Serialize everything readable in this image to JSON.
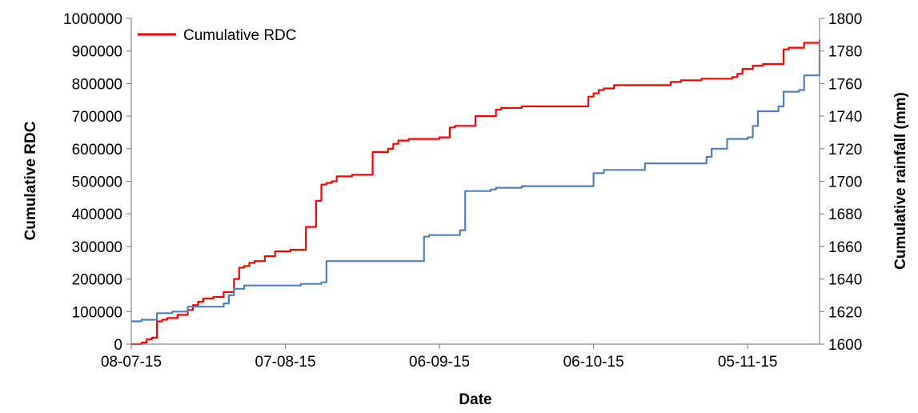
{
  "chart_data": {
    "type": "line",
    "xlabel": "Date",
    "ylabel_left": "Cumulative RDC",
    "ylabel_right": "Cumulative rainfall (mm)",
    "x_tick_labels": [
      "08-07-15",
      "07-08-15",
      "06-09-15",
      "06-10-15",
      "05-11-15"
    ],
    "x_tick_dates": [
      "2015-07-08",
      "2015-08-07",
      "2015-09-06",
      "2015-10-06",
      "2015-11-05"
    ],
    "xlim": [
      "2015-07-08",
      "2015-11-19"
    ],
    "ylim_left": [
      0,
      1000000
    ],
    "ylim_right": [
      1600,
      1800
    ],
    "y_left_ticks": [
      "0",
      "100000",
      "200000",
      "300000",
      "400000",
      "500000",
      "600000",
      "700000",
      "800000",
      "900000",
      "1000000"
    ],
    "y_right_ticks": [
      "1600",
      "1620",
      "1640",
      "1660",
      "1680",
      "1700",
      "1720",
      "1740",
      "1760",
      "1780",
      "1800"
    ],
    "legend": {
      "placement": "top-left",
      "entries": [
        "Cumulative RDC"
      ]
    },
    "grid": false,
    "series": [
      {
        "name": "Cumulative RDC",
        "axis": "left",
        "color": "#ff0000",
        "x": [
          "2015-07-08",
          "2015-07-10",
          "2015-07-11",
          "2015-07-12",
          "2015-07-13",
          "2015-07-14",
          "2015-07-15",
          "2015-07-17",
          "2015-07-19",
          "2015-07-20",
          "2015-07-21",
          "2015-07-22",
          "2015-07-24",
          "2015-07-26",
          "2015-07-28",
          "2015-07-29",
          "2015-07-30",
          "2015-07-31",
          "2015-08-01",
          "2015-08-03",
          "2015-08-05",
          "2015-08-08",
          "2015-08-11",
          "2015-08-13",
          "2015-08-14",
          "2015-08-15",
          "2015-08-16",
          "2015-08-17",
          "2015-08-18",
          "2015-08-20",
          "2015-08-24",
          "2015-08-27",
          "2015-08-28",
          "2015-08-29",
          "2015-08-31",
          "2015-09-06",
          "2015-09-08",
          "2015-09-09",
          "2015-09-10",
          "2015-09-13",
          "2015-09-17",
          "2015-09-18",
          "2015-09-21",
          "2015-09-22",
          "2015-10-05",
          "2015-10-06",
          "2015-10-07",
          "2015-10-08",
          "2015-10-10",
          "2015-10-13",
          "2015-10-21",
          "2015-10-23",
          "2015-10-27",
          "2015-11-02",
          "2015-11-03",
          "2015-11-04",
          "2015-11-06",
          "2015-11-08",
          "2015-11-12",
          "2015-11-13",
          "2015-11-16",
          "2015-11-19"
        ],
        "y": [
          0,
          5000,
          15000,
          20000,
          70000,
          75000,
          80000,
          90000,
          105000,
          120000,
          130000,
          140000,
          145000,
          160000,
          200000,
          235000,
          240000,
          250000,
          255000,
          270000,
          285000,
          290000,
          360000,
          440000,
          490000,
          495000,
          500000,
          515000,
          515000,
          520000,
          590000,
          600000,
          615000,
          625000,
          630000,
          635000,
          665000,
          670000,
          670000,
          700000,
          720000,
          725000,
          725000,
          730000,
          760000,
          770000,
          780000,
          785000,
          795000,
          795000,
          805000,
          810000,
          815000,
          820000,
          830000,
          845000,
          855000,
          860000,
          905000,
          910000,
          925000,
          935000
        ]
      },
      {
        "name": "Cumulative rainfall",
        "axis": "right",
        "color": "#4f81bd",
        "x": [
          "2015-07-08",
          "2015-07-10",
          "2015-07-13",
          "2015-07-16",
          "2015-07-19",
          "2015-07-25",
          "2015-07-26",
          "2015-07-27",
          "2015-07-28",
          "2015-07-30",
          "2015-08-07",
          "2015-08-10",
          "2015-08-14",
          "2015-08-15",
          "2015-08-28",
          "2015-09-03",
          "2015-09-04",
          "2015-09-07",
          "2015-09-10",
          "2015-09-11",
          "2015-09-12",
          "2015-09-16",
          "2015-09-17",
          "2015-09-22",
          "2015-10-05",
          "2015-10-06",
          "2015-10-08",
          "2015-10-16",
          "2015-10-28",
          "2015-10-29",
          "2015-11-01",
          "2015-11-05",
          "2015-11-06",
          "2015-11-07",
          "2015-11-11",
          "2015-11-12",
          "2015-11-15",
          "2015-11-16",
          "2015-11-19"
        ],
        "y": [
          1614,
          1615,
          1619,
          1620,
          1623,
          1623,
          1625,
          1630,
          1634,
          1636,
          1636,
          1637,
          1638,
          1651,
          1651,
          1666,
          1667,
          1667,
          1670,
          1694,
          1694,
          1695,
          1696,
          1697,
          1697,
          1705,
          1707,
          1711,
          1715,
          1720,
          1726,
          1727,
          1734,
          1743,
          1746,
          1755,
          1756,
          1765,
          1786
        ]
      }
    ]
  }
}
